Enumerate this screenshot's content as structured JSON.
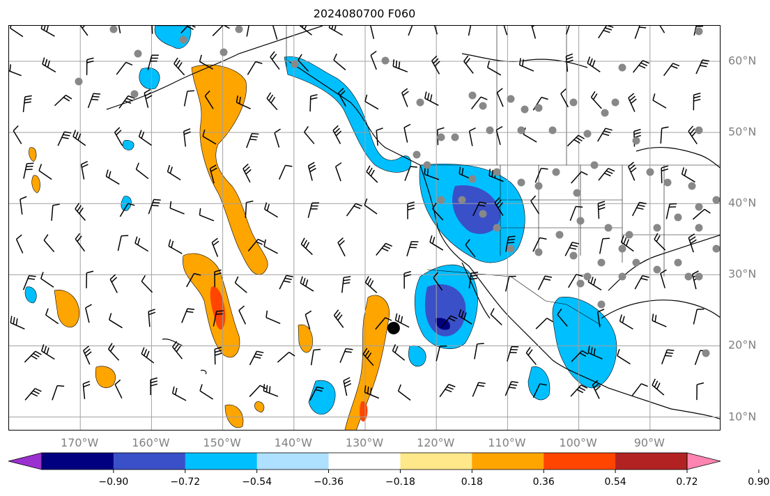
{
  "title": "2024080700 F060",
  "map": {
    "lon_range": [
      -180,
      -80
    ],
    "lat_range": [
      8,
      65
    ],
    "grid": true,
    "lon_ticks": [
      {
        "value": -170,
        "label": "170°W"
      },
      {
        "value": -160,
        "label": "160°W"
      },
      {
        "value": -150,
        "label": "150°W"
      },
      {
        "value": -140,
        "label": "140°W"
      },
      {
        "value": -130,
        "label": "130°W"
      },
      {
        "value": -120,
        "label": "120°W"
      },
      {
        "value": -110,
        "label": "110°W"
      },
      {
        "value": -100,
        "label": "100°W"
      },
      {
        "value": -90,
        "label": "90°W"
      }
    ],
    "lat_ticks": [
      {
        "value": 60,
        "label": "60°N"
      },
      {
        "value": 50,
        "label": "50°N"
      },
      {
        "value": 40,
        "label": "40°N"
      },
      {
        "value": 30,
        "label": "30°N"
      },
      {
        "value": 20,
        "label": "20°N"
      },
      {
        "value": 10,
        "label": "10°N"
      }
    ],
    "feature_marker": {
      "lon": -126,
      "lat": 22.5
    }
  },
  "colorbar": {
    "colors": [
      "#9b30d0",
      "#000080",
      "#3a50c8",
      "#00bfff",
      "#aee0ff",
      "#ffffff",
      "#ffe88a",
      "#ffa500",
      "#ff4500",
      "#b22222",
      "#ff85b0"
    ],
    "ticks": [
      "−0.90",
      "−0.72",
      "−0.54",
      "−0.36",
      "−0.18",
      "0.18",
      "0.36",
      "0.54",
      "0.72",
      "0.90"
    ]
  }
}
